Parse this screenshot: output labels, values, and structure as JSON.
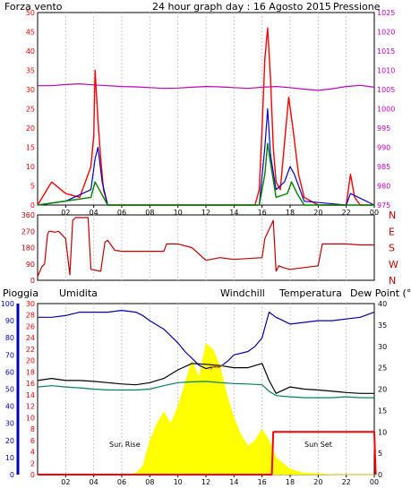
{
  "colors": {
    "wind": "#ff0000",
    "gust": "#0000c8",
    "avg": "#008000",
    "pressure": "#c000c0",
    "direction": "#c00000",
    "humidity": "#0000b0",
    "windchill": "#d08000",
    "temperature": "#000000",
    "dewpoint": "#008060",
    "rain": "#ff0000",
    "solar": "#ffff00",
    "sunlabel": "#ffd000",
    "frame": "#000000",
    "grid": "#c8c8c8"
  },
  "labels": {
    "title": "24 hour graph day : 16 Agosto 2015",
    "forza": "Forza vento",
    "pressione": "Pressione",
    "pioggia": "Pioggia",
    "umidita": "Umidita",
    "windchill": "Windchill",
    "temperatura": "Temperatura",
    "dewpoint": "Dew Point (°C",
    "sunrise": "Sun Rise",
    "sunset": "Sun Set"
  },
  "chart_data": [
    {
      "type": "line",
      "title": "24 hour graph day : 16 Agosto 2015",
      "x_ticks": [
        "02",
        "04",
        "06",
        "08",
        "10",
        "12",
        "14",
        "16",
        "18",
        "20",
        "22",
        "00"
      ],
      "y_left": {
        "label": "Forza vento",
        "ticks": [
          0,
          5,
          10,
          15,
          20,
          25,
          30,
          35,
          40,
          45,
          50
        ],
        "ylim": [
          0,
          50
        ]
      },
      "y_right": {
        "label": "Pressione",
        "ticks": [
          975,
          980,
          985,
          990,
          995,
          1000,
          1005,
          1010,
          1015,
          1020,
          1025
        ],
        "ylim": [
          975,
          1025
        ]
      },
      "series": [
        {
          "name": "Forza vento",
          "x": [
            0,
            1,
            2,
            3,
            3.4,
            3.8,
            4.0,
            4.1,
            4.3,
            4.5,
            4.7,
            5.0,
            5.5,
            6,
            7,
            8,
            9,
            10,
            11,
            12,
            13,
            14,
            15,
            15.5,
            15.8,
            16.0,
            16.2,
            16.4,
            16.6,
            16.8,
            17.0,
            17.3,
            17.6,
            17.9,
            18.2,
            18.6,
            19,
            20,
            21,
            22,
            22.3,
            22.6,
            23,
            24
          ],
          "y": [
            0,
            6,
            3,
            2,
            6,
            10,
            18,
            35,
            22,
            12,
            4,
            0,
            0,
            0,
            0,
            0,
            0,
            0,
            0,
            0,
            0,
            0,
            0,
            0,
            4,
            20,
            38,
            46,
            33,
            15,
            6,
            4,
            16,
            28,
            20,
            8,
            2,
            0,
            0,
            0,
            8,
            2,
            0,
            0
          ]
        },
        {
          "x": [
            0,
            2,
            3.8,
            4.1,
            4.3,
            4.6,
            5,
            15.8,
            16.2,
            16.4,
            16.6,
            17,
            17.6,
            18.0,
            18.3,
            19,
            22,
            22.3,
            24
          ],
          "y": [
            0,
            1,
            4,
            12,
            15,
            6,
            0,
            0,
            15,
            25,
            13,
            4,
            6,
            10,
            8,
            1,
            0,
            3,
            0
          ]
        },
        {
          "x": [
            0,
            3.8,
            4.1,
            4.4,
            5,
            15.8,
            16.2,
            16.4,
            16.6,
            17,
            17.8,
            18.1,
            18.5,
            19,
            24
          ],
          "y": [
            0,
            2,
            6,
            4,
            0,
            0,
            8,
            16,
            11,
            2,
            3,
            6,
            3,
            0,
            0
          ]
        },
        {
          "x": [
            0,
            1,
            2,
            3,
            4,
            5,
            6,
            7,
            8,
            9,
            10,
            11,
            12,
            13,
            14,
            15,
            16,
            17,
            18,
            19,
            20,
            21,
            22,
            23,
            24
          ],
          "y": [
            1006,
            1006,
            1006.3,
            1006.5,
            1006.2,
            1006,
            1005.8,
            1005.7,
            1005.5,
            1005.3,
            1005.4,
            1005.6,
            1005.8,
            1005.7,
            1005.5,
            1005.3,
            1005.6,
            1005.8,
            1005.5,
            1005.1,
            1004.8,
            1005.2,
            1005.8,
            1006.1,
            1005.6
          ]
        }
      ]
    },
    {
      "type": "line",
      "y_left": {
        "ticks": [
          0,
          90,
          180,
          270,
          360
        ],
        "ylim": [
          0,
          360
        ]
      },
      "y_right": {
        "ticks": [
          "N",
          "W",
          "S",
          "E",
          "N"
        ]
      },
      "series": [
        {
          "x": [
            0,
            0.3,
            0.5,
            0.7,
            0.8,
            1.0,
            1.2,
            1.5,
            2.0,
            2.3,
            2.5,
            2.7,
            3.0,
            3.6,
            3.8,
            4.5,
            4.8,
            5.0,
            5.5,
            6,
            7,
            8,
            9,
            9.2,
            10,
            11,
            12,
            13,
            14,
            15,
            16,
            16.2,
            16.5,
            16.8,
            17.0,
            17.2,
            17.5,
            18,
            19,
            20,
            20.3,
            21,
            22,
            23,
            24
          ],
          "y": [
            20,
            75,
            90,
            250,
            270,
            270,
            265,
            270,
            230,
            30,
            330,
            345,
            345,
            345,
            60,
            50,
            210,
            220,
            165,
            160,
            160,
            160,
            160,
            200,
            200,
            180,
            110,
            125,
            115,
            120,
            125,
            230,
            280,
            330,
            50,
            80,
            70,
            60,
            70,
            80,
            200,
            200,
            200,
            195,
            195
          ]
        }
      ]
    },
    {
      "type": "line",
      "y_left": {
        "label": "Pioggia",
        "ticks": [
          0,
          2,
          4,
          6,
          8,
          10,
          12,
          14,
          16,
          18,
          20,
          22,
          24,
          26,
          28,
          30
        ],
        "ylim": [
          0,
          30
        ]
      },
      "y_left2": {
        "label": "Umidita",
        "ticks": [
          0,
          10,
          20,
          30,
          40,
          50,
          60,
          70,
          80,
          90,
          100
        ],
        "ylim": [
          0,
          100
        ]
      },
      "y_right": {
        "label": "Dew Point (°C",
        "ticks": [
          0,
          5,
          10,
          15,
          20,
          25,
          30,
          35,
          40
        ],
        "ylim": [
          0,
          40
        ]
      },
      "series": [
        {
          "name": "Umidita",
          "x": [
            0,
            1,
            2,
            3,
            4,
            5,
            6,
            7,
            7.5,
            8,
            9,
            10,
            10.5,
            11,
            11.5,
            12,
            12.5,
            13,
            13.5,
            14,
            15,
            15.5,
            16,
            16.5,
            17,
            17.5,
            18,
            19,
            20,
            21,
            22,
            23,
            24
          ],
          "y": [
            92,
            92,
            93,
            95,
            95,
            95,
            96,
            95,
            93,
            90,
            85,
            77,
            72,
            68,
            64,
            62,
            63,
            63,
            66,
            70,
            72,
            75,
            80,
            95,
            92,
            90,
            88,
            89,
            90,
            90,
            91,
            92,
            95
          ]
        },
        {
          "name": "Windchill",
          "x": [
            12.3,
            12.6,
            12.9,
            13.2
          ],
          "y": [
            24.5,
            25.5,
            25,
            25.5
          ]
        },
        {
          "name": "Temperatura",
          "x": [
            0,
            1,
            2,
            3,
            4,
            5,
            6,
            7,
            8,
            9,
            10,
            11,
            12,
            13,
            14,
            15,
            15.5,
            16,
            16.5,
            17,
            18,
            19,
            20,
            21,
            22,
            23,
            24
          ],
          "y": [
            22,
            22.5,
            22,
            22,
            21.8,
            21.5,
            21.2,
            21,
            21.5,
            22.5,
            24.5,
            26,
            25.8,
            25.5,
            25,
            25,
            25.5,
            26,
            22,
            19,
            20.5,
            20,
            19.8,
            19.5,
            19.2,
            19,
            19
          ]
        },
        {
          "name": "Dew Point (°C",
          "x": [
            0,
            1,
            2,
            3,
            4,
            5,
            6,
            7,
            8,
            9,
            10,
            11,
            12,
            13,
            14,
            15,
            16,
            16.5,
            17,
            18,
            19,
            20,
            21,
            22,
            23,
            24
          ],
          "y": [
            20.5,
            20.8,
            20.5,
            20.3,
            20,
            19.8,
            19.8,
            19.8,
            20,
            20.8,
            21.5,
            21.7,
            21.8,
            21.5,
            21.3,
            21.2,
            21,
            19.5,
            18.5,
            18.2,
            18,
            18,
            18,
            18.2,
            18,
            18
          ]
        },
        {
          "name": "Pioggia",
          "x": [
            0,
            16.7,
            16.8,
            24,
            24.1
          ],
          "y": [
            0,
            0,
            7.5,
            7.5,
            0
          ]
        },
        {
          "x": [
            0,
            6.5,
            7,
            7.5,
            8,
            8.5,
            9,
            9.5,
            10,
            10.5,
            11,
            11.5,
            12,
            12.5,
            13,
            13.5,
            14,
            14.5,
            15,
            15.5,
            16,
            16.5,
            17,
            17.5,
            18,
            18.5,
            19,
            20,
            21,
            24
          ],
          "y": [
            0,
            0,
            0.3,
            1.5,
            6,
            9,
            11,
            9,
            12,
            16,
            20,
            17,
            23,
            22,
            19,
            14,
            10,
            7,
            5,
            6,
            8,
            6,
            3,
            2,
            1,
            0.6,
            0.3,
            0.2,
            0,
            0
          ]
        }
      ]
    }
  ]
}
